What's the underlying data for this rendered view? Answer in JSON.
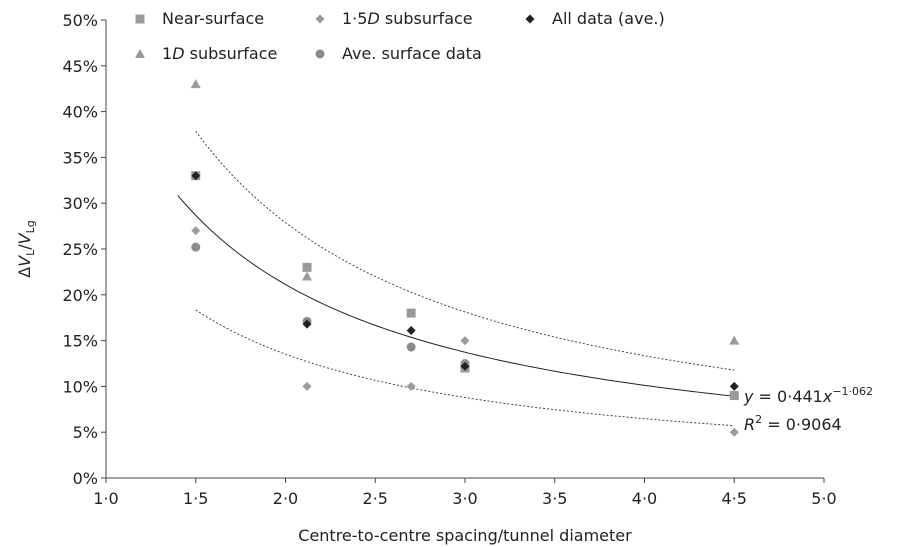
{
  "chart_data": {
    "type": "scatter",
    "xlabel": "Centre-to-centre spacing/tunnel diameter",
    "ylabel": "ΔV_L/V_Lg",
    "xlim": [
      1.0,
      5.0
    ],
    "ylim": [
      0,
      50
    ],
    "x_ticks": [
      "1·0",
      "1·5",
      "2·0",
      "2·5",
      "3·0",
      "3·5",
      "4·0",
      "4·5",
      "5·0"
    ],
    "y_ticks": [
      "0%",
      "5%",
      "10%",
      "15%",
      "20%",
      "25%",
      "30%",
      "35%",
      "40%",
      "45%",
      "50%"
    ],
    "series": [
      {
        "name": "Near-surface",
        "marker": "square",
        "color": "#9a9a9a",
        "x": [
          1.5,
          2.12,
          2.7,
          3.0,
          4.5
        ],
        "y": [
          33,
          23,
          18,
          12,
          9
        ]
      },
      {
        "name": "1·5D subsurface",
        "marker": "diamond",
        "color": "#9a9a9a",
        "x": [
          1.5,
          2.12,
          2.7,
          3.0,
          4.5
        ],
        "y": [
          27,
          10,
          10,
          15,
          5
        ]
      },
      {
        "name": "All data (ave.)",
        "marker": "diamond",
        "color": "#222222",
        "x": [
          1.5,
          2.12,
          2.7,
          3.0,
          4.5
        ],
        "y": [
          33,
          16.8,
          16.1,
          12.2,
          10
        ]
      },
      {
        "name": "1D subsurface",
        "marker": "triangle",
        "color": "#9a9a9a",
        "x": [
          1.5,
          2.12,
          3.0,
          4.5
        ],
        "y": [
          43,
          22,
          12.5,
          15
        ]
      },
      {
        "name": "Ave. surface data",
        "marker": "circle",
        "color": "#8c8c8c",
        "x": [
          1.5,
          2.12,
          2.7,
          3.0
        ],
        "y": [
          25.2,
          17.1,
          14.3,
          12.5
        ]
      }
    ],
    "fit": {
      "a": 0.441,
      "b": -1.062,
      "x_range": [
        1.4,
        4.5
      ],
      "upper_factor": 1.32,
      "lower_factor": 0.64
    },
    "legend": [
      {
        "row": 0,
        "col": 0,
        "marker": "square",
        "color": "#9a9a9a",
        "parts": [
          {
            "t": "Near-surface",
            "i": false
          }
        ]
      },
      {
        "row": 0,
        "col": 1,
        "marker": "diamond",
        "color": "#9a9a9a",
        "parts": [
          {
            "t": "1·5",
            "i": false
          },
          {
            "t": "D",
            "i": true
          },
          {
            "t": " subsurface",
            "i": false
          }
        ]
      },
      {
        "row": 0,
        "col": 2,
        "marker": "diamond",
        "color": "#222222",
        "parts": [
          {
            "t": "All data (ave.)",
            "i": false
          }
        ]
      },
      {
        "row": 1,
        "col": 0,
        "marker": "triangle",
        "color": "#9a9a9a",
        "parts": [
          {
            "t": "1",
            "i": false
          },
          {
            "t": "D",
            "i": true
          },
          {
            "t": " subsurface",
            "i": false
          }
        ]
      },
      {
        "row": 1,
        "col": 1,
        "marker": "circle",
        "color": "#8c8c8c",
        "parts": [
          {
            "t": "Ave. surface data",
            "i": false
          }
        ]
      }
    ],
    "equation": {
      "line1": {
        "y": "y",
        "eq": " = 0·441",
        "x": "x",
        "exp": "−1·062"
      },
      "line2": {
        "r": "R",
        "sup": "2",
        "eq": " = 0·9064"
      }
    }
  }
}
